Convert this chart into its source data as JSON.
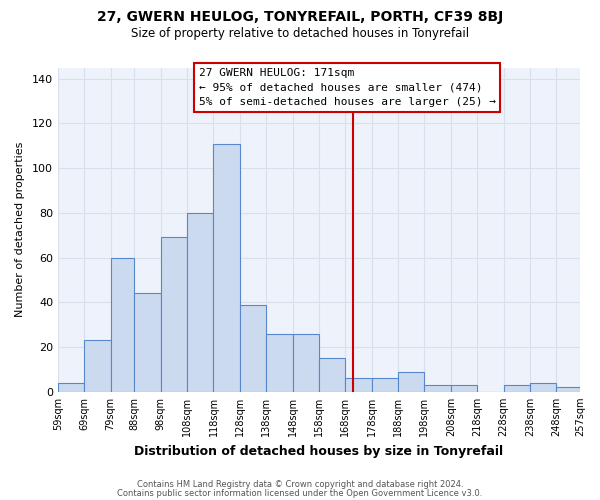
{
  "title": "27, GWERN HEULOG, TONYREFAIL, PORTH, CF39 8BJ",
  "subtitle": "Size of property relative to detached houses in Tonyrefail",
  "xlabel": "Distribution of detached houses by size in Tonyrefail",
  "ylabel": "Number of detached properties",
  "bar_values": [
    4,
    23,
    60,
    44,
    69,
    80,
    111,
    39,
    26,
    26,
    15,
    6,
    6,
    9,
    3,
    3,
    0,
    3,
    4,
    2
  ],
  "bin_edges": [
    59,
    69,
    79,
    88,
    98,
    108,
    118,
    128,
    138,
    148,
    158,
    168,
    178,
    188,
    198,
    208,
    218,
    228,
    238,
    248,
    257
  ],
  "tick_labels": [
    "59sqm",
    "69sqm",
    "79sqm",
    "88sqm",
    "98sqm",
    "108sqm",
    "118sqm",
    "128sqm",
    "138sqm",
    "148sqm",
    "158sqm",
    "168sqm",
    "178sqm",
    "188sqm",
    "198sqm",
    "208sqm",
    "218sqm",
    "228sqm",
    "238sqm",
    "248sqm",
    "257sqm"
  ],
  "bar_color": "#ccdaf0",
  "bar_edge_color": "#5588cc",
  "vline_x": 171,
  "vline_color": "#cc0000",
  "annotation_title": "27 GWERN HEULOG: 171sqm",
  "annotation_line1": "← 95% of detached houses are smaller (474)",
  "annotation_line2": "5% of semi-detached houses are larger (25) →",
  "annotation_box_color": "#cc0000",
  "ylim": [
    0,
    145
  ],
  "yticks": [
    0,
    20,
    40,
    60,
    80,
    100,
    120,
    140
  ],
  "footer1": "Contains HM Land Registry data © Crown copyright and database right 2024.",
  "footer2": "Contains public sector information licensed under the Open Government Licence v3.0.",
  "background_color": "#ffffff",
  "plot_bg_color": "#eef2fa",
  "grid_color": "#d8e0ee"
}
